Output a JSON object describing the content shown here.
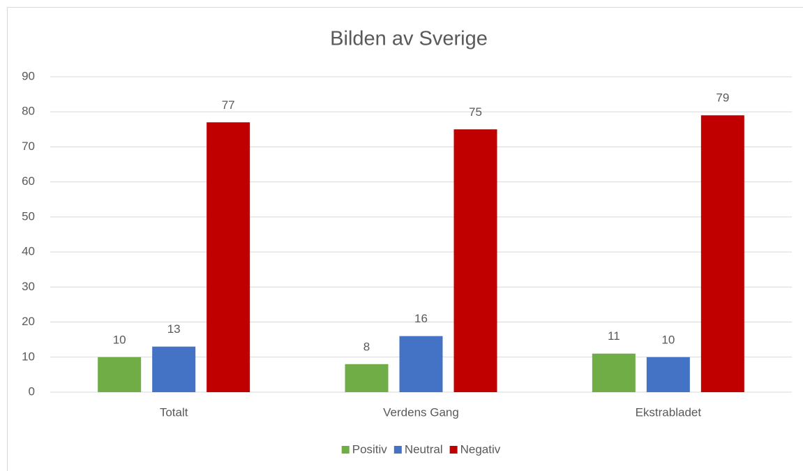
{
  "chart_data": {
    "type": "bar",
    "title": "Bilden av Sverige",
    "categories": [
      "Totalt",
      "Verdens Gang",
      "Ekstrabladet"
    ],
    "series": [
      {
        "name": "Positiv",
        "color": "#70ad47",
        "values": [
          10,
          8,
          11
        ]
      },
      {
        "name": "Neutral",
        "color": "#4472c4",
        "values": [
          13,
          16,
          10
        ]
      },
      {
        "name": "Negativ",
        "color": "#c00000",
        "values": [
          77,
          75,
          79
        ]
      }
    ],
    "ylim": [
      0,
      90
    ],
    "yticks": [
      0,
      10,
      20,
      30,
      40,
      50,
      60,
      70,
      80,
      90
    ],
    "grid": true,
    "data_labels": true,
    "legend": "bottom"
  }
}
